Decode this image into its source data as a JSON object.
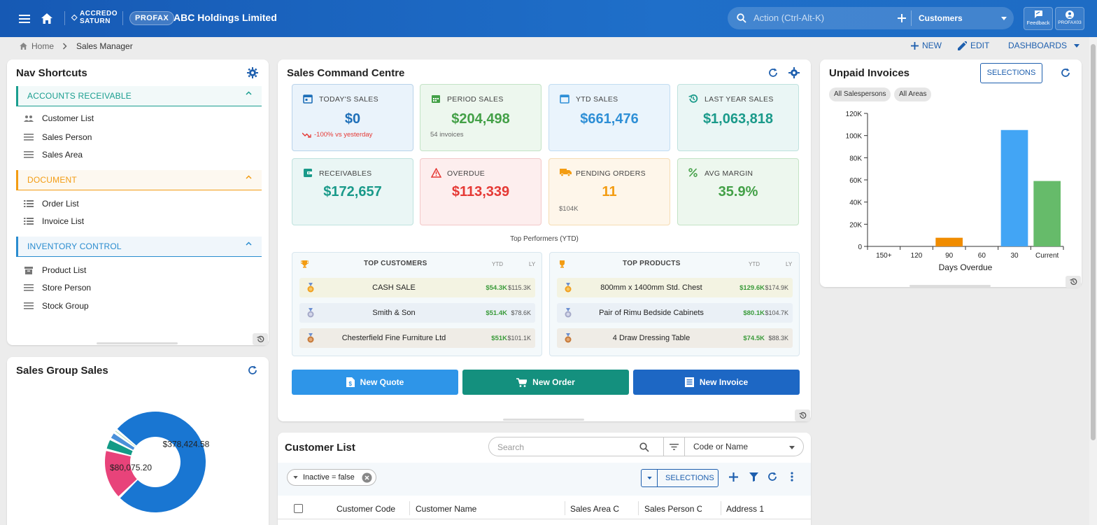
{
  "topbar": {
    "brand_line1": "ACCREDO",
    "brand_line2": "SATURN",
    "badge": "PROFAX",
    "company": "ABC Holdings Limited",
    "search_placeholder": "Action (Ctrl-Alt-K)",
    "context_select": "Customers",
    "feedback_label": "Feedback",
    "user_label": "PROFAX03",
    "accent": "#1f6fc9"
  },
  "breadcrumb": {
    "home": "Home",
    "current": "Sales Manager"
  },
  "page_actions": {
    "new": "NEW",
    "edit": "EDIT",
    "dashboards": "DASHBOARDS"
  },
  "nav": {
    "title": "Nav Shortcuts",
    "groups": [
      {
        "label": "ACCOUNTS RECEIVABLE",
        "color": "#1a9e8f",
        "items": [
          "Customer List",
          "Sales Person",
          "Sales Area"
        ]
      },
      {
        "label": "DOCUMENT",
        "color": "#f39c12",
        "items": [
          "Order List",
          "Invoice List"
        ]
      },
      {
        "label": "INVENTORY CONTROL",
        "color": "#2a8ccf",
        "items": [
          "Product List",
          "Store Person",
          "Stock Group"
        ]
      }
    ]
  },
  "scc": {
    "title": "Sales Command Centre",
    "kpis": [
      {
        "label": "TODAY'S SALES",
        "value": "$0",
        "sub": "-100% vs yesterday",
        "color": "#1e6fb8",
        "bg": "#eaf3fb",
        "border": "#b9d3ea",
        "icon": "calendar-icon"
      },
      {
        "label": "PERIOD SALES",
        "value": "$204,498",
        "sub": "54 invoices",
        "color": "#43a047",
        "bg": "#edf7ee",
        "border": "#c3e3c5",
        "icon": "calendar-grid-icon"
      },
      {
        "label": "YTD SALES",
        "value": "$661,476",
        "sub": "",
        "color": "#2e8fd6",
        "bg": "#eaf4fc",
        "border": "#c1dcf2",
        "icon": "calendar-icon"
      },
      {
        "label": "LAST YEAR SALES",
        "value": "$1,063,818",
        "sub": "",
        "color": "#1a9a8a",
        "bg": "#eaf6f5",
        "border": "#bfe2de",
        "icon": "history-icon"
      },
      {
        "label": "RECEIVABLES",
        "value": "$172,657",
        "sub": "",
        "color": "#1a9a8a",
        "bg": "#eaf6f5",
        "border": "#bfe2de",
        "icon": "wallet-icon"
      },
      {
        "label": "OVERDUE",
        "value": "$113,339",
        "sub": "",
        "color": "#e53935",
        "bg": "#fdeeee",
        "border": "#f3c8c8",
        "icon": "warning-icon"
      },
      {
        "label": "PENDING ORDERS",
        "value": "11",
        "sub": "$104K",
        "color": "#f39c12",
        "bg": "#fef6ea",
        "border": "#f6dcb3",
        "icon": "truck-icon"
      },
      {
        "label": "AVG MARGIN",
        "value": "35.9%",
        "sub": "",
        "color": "#43a047",
        "bg": "#edf7ee",
        "border": "#c3e3c5",
        "icon": "percent-icon"
      }
    ],
    "top_title": "Top Performers (YTD)",
    "top_customers": {
      "title": "TOP CUSTOMERS",
      "ytd": "YTD",
      "ly": "LY",
      "rows": [
        {
          "name": "CASH SALE",
          "ytd": "$54.3K",
          "ly": "$115.3K",
          "bg": "#f3f3e2"
        },
        {
          "name": "Smith & Son",
          "ytd": "$51.4K",
          "ly": "$78.6K",
          "bg": "#eaf0f6"
        },
        {
          "name": "Chesterfield Fine Furniture Ltd",
          "ytd": "$51K",
          "ly": "$101.1K",
          "bg": "#efece6"
        }
      ]
    },
    "top_products": {
      "title": "TOP PRODUCTS",
      "ytd": "YTD",
      "ly": "LY",
      "rows": [
        {
          "name": "800mm x 1400mm Std. Chest",
          "ytd": "$129.6K",
          "ly": "$174.9K",
          "bg": "#f3f3e2"
        },
        {
          "name": "Pair of Rimu Bedside Cabinets",
          "ytd": "$80.1K",
          "ly": "$104.7K",
          "bg": "#eaf0f6"
        },
        {
          "name": "4 Draw Dressing Table",
          "ytd": "$74.5K",
          "ly": "$88.3K",
          "bg": "#efece6"
        }
      ]
    },
    "buttons": {
      "quote": "New Quote",
      "order": "New Order",
      "invoice": "New Invoice"
    }
  },
  "unpaid": {
    "title": "Unpaid Invoices",
    "selections": "SELECTIONS",
    "chips": [
      "All Salespersons",
      "All Areas"
    ]
  },
  "chart_data": [
    {
      "type": "bar",
      "categories": [
        "150+",
        "120",
        "90",
        "60",
        "30",
        "Current"
      ],
      "values": [
        0,
        0,
        7800,
        0,
        105000,
        59000
      ],
      "colors": [
        "#1e88e5",
        "#1e88e5",
        "#f08c00",
        "#1e88e5",
        "#42a5f5",
        "#66bb6a"
      ],
      "xlabel": "Days Overdue",
      "ylabel": "",
      "ylim": [
        0,
        120000
      ],
      "yticks": [
        "0",
        "20K",
        "40K",
        "60K",
        "80K",
        "100K",
        "120K"
      ],
      "grid": false
    },
    {
      "type": "pie",
      "title": "Sales Group Sales",
      "slices": [
        {
          "value": 378424.58,
          "label": "$378,424.58",
          "color": "#1976d2"
        },
        {
          "value": 80075.2,
          "label": "$80,075.20",
          "color": "#e8437a"
        },
        {
          "value": 18000,
          "label": "",
          "color": "#129a86"
        },
        {
          "value": 12000,
          "label": "",
          "color": "#4a90d9"
        },
        {
          "value": 5000,
          "label": "",
          "color": "#a5d6a7"
        }
      ]
    }
  ],
  "sales_group": {
    "title": "Sales Group Sales"
  },
  "customer_list": {
    "title": "Customer List",
    "search_placeholder": "Search",
    "search_mode": "Code or Name",
    "filter_chip": "Inactive = false",
    "selections": "SELECTIONS",
    "columns": [
      "Customer Code",
      "Customer Name",
      "Sales Area Co",
      "Sales Person Co",
      "Address 1"
    ]
  }
}
